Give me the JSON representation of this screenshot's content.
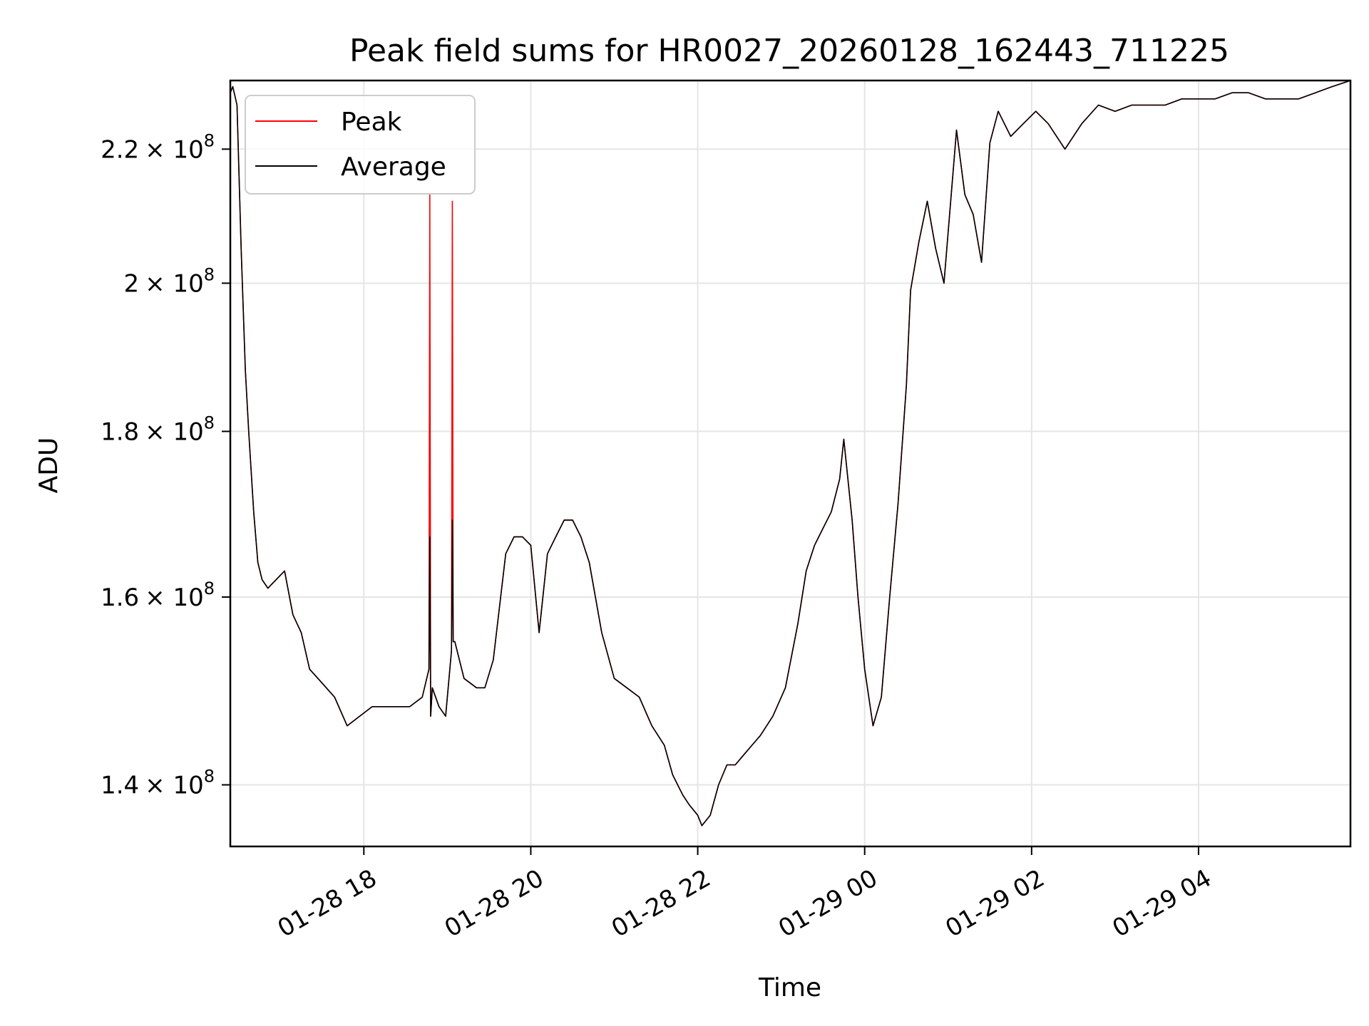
{
  "chart_data": {
    "type": "line",
    "title": "Peak field sums for HR0027_20260128_162443_711225",
    "xlabel": "Time",
    "ylabel": "ADU",
    "x_unit": "hours since 01-28 16:24",
    "xlim": [
      0.0,
      13.42
    ],
    "ylim": [
      134000000.0,
      231000000.0
    ],
    "yscale": "log",
    "x_ticks": [
      {
        "value": 1.6,
        "label": "01-28 18"
      },
      {
        "value": 3.6,
        "label": "01-28 20"
      },
      {
        "value": 5.6,
        "label": "01-28 22"
      },
      {
        "value": 7.6,
        "label": "01-29 00"
      },
      {
        "value": 9.6,
        "label": "01-29 02"
      },
      {
        "value": 11.6,
        "label": "01-29 04"
      }
    ],
    "y_ticks": [
      {
        "value": 140000000.0,
        "mantissa": "1.4",
        "base": "× 10",
        "exp": "8"
      },
      {
        "value": 160000000.0,
        "mantissa": "1.6",
        "base": "× 10",
        "exp": "8"
      },
      {
        "value": 180000000.0,
        "mantissa": "1.8",
        "base": "× 10",
        "exp": "8"
      },
      {
        "value": 200000000.0,
        "mantissa": "2",
        "base": "× 10",
        "exp": "8"
      },
      {
        "value": 220000000.0,
        "mantissa": "2.2",
        "base": "× 10",
        "exp": "8"
      }
    ],
    "grid": true,
    "legend_position": "top-left",
    "series": [
      {
        "name": "Peak",
        "color": "#ff0000",
        "x": [
          0.0,
          0.03,
          0.08,
          0.13,
          0.18,
          0.22,
          0.28,
          0.33,
          0.38,
          0.45,
          0.55,
          0.65,
          0.75,
          0.85,
          0.95,
          1.05,
          1.15,
          1.25,
          1.4,
          1.55,
          1.7,
          1.85,
          2.0,
          2.15,
          2.3,
          2.38,
          2.39,
          2.4,
          2.42,
          2.5,
          2.58,
          2.65,
          2.66,
          2.67,
          2.69,
          2.8,
          2.95,
          3.05,
          3.15,
          3.3,
          3.4,
          3.5,
          3.6,
          3.7,
          3.8,
          3.9,
          4.0,
          4.1,
          4.2,
          4.3,
          4.45,
          4.6,
          4.75,
          4.9,
          5.05,
          5.2,
          5.3,
          5.42,
          5.5,
          5.6,
          5.65,
          5.75,
          5.85,
          5.95,
          6.05,
          6.15,
          6.25,
          6.35,
          6.5,
          6.65,
          6.8,
          6.9,
          7.0,
          7.1,
          7.2,
          7.3,
          7.35,
          7.45,
          7.52,
          7.6,
          7.7,
          7.8,
          7.9,
          8.0,
          8.1,
          8.15,
          8.25,
          8.35,
          8.45,
          8.55,
          8.7,
          8.8,
          8.9,
          9.0,
          9.1,
          9.2,
          9.35,
          9.5,
          9.65,
          9.8,
          10.0,
          10.2,
          10.4,
          10.6,
          10.8,
          11.0,
          11.2,
          11.4,
          11.6,
          11.8,
          12.0,
          12.2,
          12.4,
          12.6,
          12.8,
          13.0,
          13.2,
          13.42
        ],
        "y": [
          229000000.0,
          230000000.0,
          227000000.0,
          205000000.0,
          188000000.0,
          180000000.0,
          170000000.0,
          164000000.0,
          162000000.0,
          161000000.0,
          162000000.0,
          163000000.0,
          158000000.0,
          156000000.0,
          152000000.0,
          151000000.0,
          150000000.0,
          149000000.0,
          146000000.0,
          147000000.0,
          148000000.0,
          148000000.0,
          148000000.0,
          148000000.0,
          149000000.0,
          152000000.0,
          213000000.0,
          147000000.0,
          150000000.0,
          148000000.0,
          147000000.0,
          154000000.0,
          212000000.0,
          155000000.0,
          155000000.0,
          151000000.0,
          150000000.0,
          150000000.0,
          153000000.0,
          165000000.0,
          167000000.0,
          167000000.0,
          166000000.0,
          156000000.0,
          165000000.0,
          167000000.0,
          169000000.0,
          169000000.0,
          167000000.0,
          164000000.0,
          156000000.0,
          151000000.0,
          150000000.0,
          149000000.0,
          146000000.0,
          144000000.0,
          141000000.0,
          139000000.0,
          138000000.0,
          137000000.0,
          136000000.0,
          137000000.0,
          140000000.0,
          142000000.0,
          142000000.0,
          143000000.0,
          144000000.0,
          145000000.0,
          147000000.0,
          150000000.0,
          157000000.0,
          163000000.0,
          166000000.0,
          168000000.0,
          170000000.0,
          174000000.0,
          179000000.0,
          169000000.0,
          160000000.0,
          152000000.0,
          146000000.0,
          149000000.0,
          160000000.0,
          171000000.0,
          186000000.0,
          199000000.0,
          206000000.0,
          212000000.0,
          205000000.0,
          200000000.0,
          223000000.0,
          213000000.0,
          210000000.0,
          203000000.0,
          221000000.0,
          226000000.0,
          222000000.0,
          224000000.0,
          226000000.0,
          224000000.0,
          220000000.0,
          224000000.0,
          227000000.0,
          226000000.0,
          227000000.0,
          227000000.0,
          227000000.0,
          228000000.0,
          228000000.0,
          228000000.0,
          229000000.0,
          229000000.0,
          228000000.0,
          228000000.0,
          228000000.0,
          229000000.0,
          230000000.0,
          231000000.0
        ]
      },
      {
        "name": "Average",
        "color": "#000000",
        "x": [
          0.0,
          0.03,
          0.08,
          0.13,
          0.18,
          0.22,
          0.28,
          0.33,
          0.38,
          0.45,
          0.55,
          0.65,
          0.75,
          0.85,
          0.95,
          1.05,
          1.15,
          1.25,
          1.4,
          1.55,
          1.7,
          1.85,
          2.0,
          2.15,
          2.3,
          2.38,
          2.39,
          2.4,
          2.42,
          2.5,
          2.58,
          2.65,
          2.66,
          2.67,
          2.69,
          2.8,
          2.95,
          3.05,
          3.15,
          3.3,
          3.4,
          3.5,
          3.6,
          3.7,
          3.8,
          3.9,
          4.0,
          4.1,
          4.2,
          4.3,
          4.45,
          4.6,
          4.75,
          4.9,
          5.05,
          5.2,
          5.3,
          5.42,
          5.5,
          5.6,
          5.65,
          5.75,
          5.85,
          5.95,
          6.05,
          6.15,
          6.25,
          6.35,
          6.5,
          6.65,
          6.8,
          6.9,
          7.0,
          7.1,
          7.2,
          7.3,
          7.35,
          7.45,
          7.52,
          7.6,
          7.7,
          7.8,
          7.9,
          8.0,
          8.1,
          8.15,
          8.25,
          8.35,
          8.45,
          8.55,
          8.7,
          8.8,
          8.9,
          9.0,
          9.1,
          9.2,
          9.35,
          9.5,
          9.65,
          9.8,
          10.0,
          10.2,
          10.4,
          10.6,
          10.8,
          11.0,
          11.2,
          11.4,
          11.6,
          11.8,
          12.0,
          12.2,
          12.4,
          12.6,
          12.8,
          13.0,
          13.2,
          13.42
        ],
        "y": [
          229000000.0,
          230000000.0,
          227000000.0,
          205000000.0,
          188000000.0,
          180000000.0,
          170000000.0,
          164000000.0,
          162000000.0,
          161000000.0,
          162000000.0,
          163000000.0,
          158000000.0,
          156000000.0,
          152000000.0,
          151000000.0,
          150000000.0,
          149000000.0,
          146000000.0,
          147000000.0,
          148000000.0,
          148000000.0,
          148000000.0,
          148000000.0,
          149000000.0,
          152000000.0,
          167000000.0,
          147000000.0,
          150000000.0,
          148000000.0,
          147000000.0,
          154000000.0,
          169000000.0,
          155000000.0,
          155000000.0,
          151000000.0,
          150000000.0,
          150000000.0,
          153000000.0,
          165000000.0,
          167000000.0,
          167000000.0,
          166000000.0,
          156000000.0,
          165000000.0,
          167000000.0,
          169000000.0,
          169000000.0,
          167000000.0,
          164000000.0,
          156000000.0,
          151000000.0,
          150000000.0,
          149000000.0,
          146000000.0,
          144000000.0,
          141000000.0,
          139000000.0,
          138000000.0,
          137000000.0,
          136000000.0,
          137000000.0,
          140000000.0,
          142000000.0,
          142000000.0,
          143000000.0,
          144000000.0,
          145000000.0,
          147000000.0,
          150000000.0,
          157000000.0,
          163000000.0,
          166000000.0,
          168000000.0,
          170000000.0,
          174000000.0,
          179000000.0,
          169000000.0,
          160000000.0,
          152000000.0,
          146000000.0,
          149000000.0,
          160000000.0,
          171000000.0,
          186000000.0,
          199000000.0,
          206000000.0,
          212000000.0,
          205000000.0,
          200000000.0,
          223000000.0,
          213000000.0,
          210000000.0,
          203000000.0,
          221000000.0,
          226000000.0,
          222000000.0,
          224000000.0,
          226000000.0,
          224000000.0,
          220000000.0,
          224000000.0,
          227000000.0,
          226000000.0,
          227000000.0,
          227000000.0,
          227000000.0,
          228000000.0,
          228000000.0,
          228000000.0,
          229000000.0,
          229000000.0,
          228000000.0,
          228000000.0,
          228000000.0,
          229000000.0,
          230000000.0,
          231000000.0
        ]
      }
    ]
  }
}
